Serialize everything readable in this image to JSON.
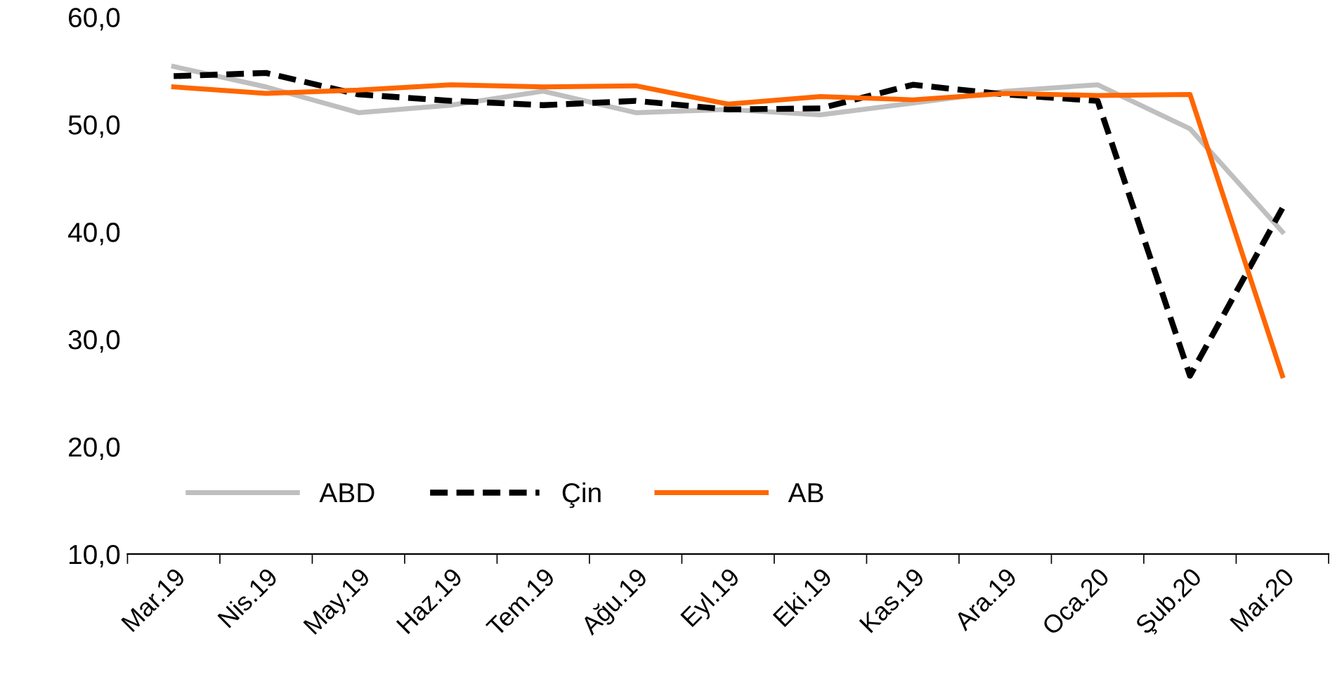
{
  "chart_data": {
    "type": "line",
    "categories": [
      "Mar.19",
      "Nis.19",
      "May.19",
      "Haz.19",
      "Tem.19",
      "Ağu.19",
      "Eyl.19",
      "Eki.19",
      "Kas.19",
      "Ara.19",
      "Oca.20",
      "Şub.20",
      "Mar.20"
    ],
    "series": [
      {
        "name": "ABD",
        "color": "#bfbfbf",
        "line_style": "solid",
        "values": [
          55.4,
          53.5,
          51.1,
          51.8,
          53.1,
          51.1,
          51.4,
          50.9,
          52.0,
          53.1,
          53.7,
          49.6,
          40.0
        ]
      },
      {
        "name": "Çin",
        "color": "#000000",
        "line_style": "dashed",
        "values": [
          54.5,
          54.8,
          52.8,
          52.2,
          51.8,
          52.2,
          51.4,
          51.5,
          53.7,
          52.8,
          52.2,
          26.6,
          42.2
        ]
      },
      {
        "name": "AB",
        "color": "#ff6600",
        "line_style": "solid",
        "values": [
          53.5,
          52.9,
          53.2,
          53.7,
          53.5,
          53.6,
          51.9,
          52.6,
          52.3,
          52.9,
          52.7,
          52.8,
          26.6
        ]
      }
    ],
    "ylim": [
      10,
      60
    ],
    "yticks": [
      {
        "value": 10,
        "label": "10,0"
      },
      {
        "value": 20,
        "label": "20,0"
      },
      {
        "value": 30,
        "label": "30,0"
      },
      {
        "value": 40,
        "label": "40,0"
      },
      {
        "value": 50,
        "label": "50,0"
      },
      {
        "value": 60,
        "label": "60,0"
      }
    ],
    "grid": false,
    "legend": "bottom left",
    "marker": "none"
  }
}
